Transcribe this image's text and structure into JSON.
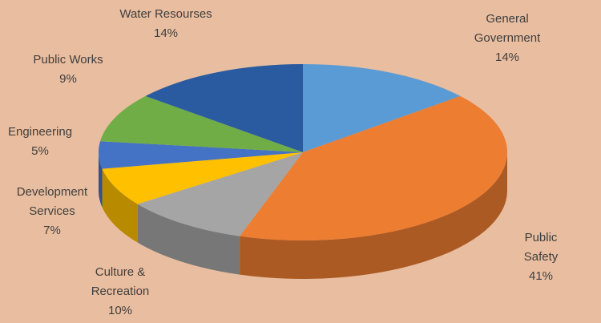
{
  "chart_data": {
    "type": "pie",
    "categories": [
      "General Government",
      "Public Safety",
      "Culture & Recreation",
      "Development Services",
      "Engineering",
      "Public Works",
      "Water Resourses"
    ],
    "values": [
      14,
      41,
      10,
      7,
      5,
      9,
      14
    ],
    "value_labels": [
      "14%",
      "41%",
      "10%",
      "7%",
      "5%",
      "9%",
      "14%"
    ],
    "colors": [
      "#5b9bd5",
      "#ed7d31",
      "#a5a5a5",
      "#ffc000",
      "#4472c4",
      "#70ad47",
      "#2a5aa0"
    ]
  }
}
